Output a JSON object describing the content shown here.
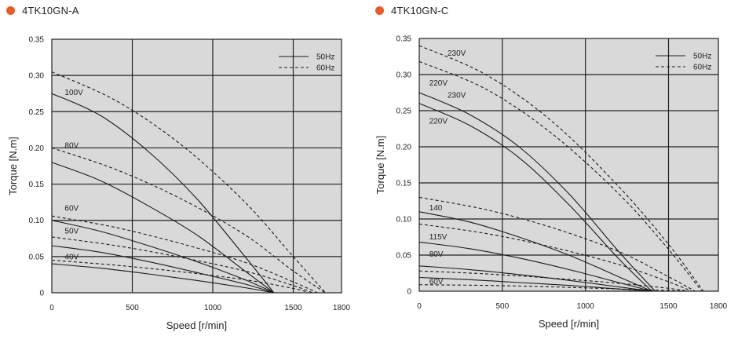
{
  "colors": {
    "dot": "#e85a2a",
    "plot_bg": "#d9d9d9",
    "grid": "#222222",
    "curve": "#1a1a1a"
  },
  "chart_data": [
    {
      "type": "line",
      "title": "4TK10GN-A",
      "xlabel": "Speed [r/min]",
      "ylabel": "Torque [N.m]",
      "xlim": [
        0,
        1800
      ],
      "ylim": [
        0,
        0.35
      ],
      "xticks": [
        0,
        500,
        1000,
        1500,
        1800
      ],
      "yticks": [
        0,
        0.05,
        0.1,
        0.15,
        0.2,
        0.25,
        0.3,
        0.35
      ],
      "ytick_labels": [
        "0",
        "0.05",
        "0.10",
        "0.15",
        "0.20",
        "0.25",
        "0.30",
        "0.35"
      ],
      "legend": [
        {
          "label": "50Hz",
          "style": "solid"
        },
        {
          "label": "60Hz",
          "style": "dashed"
        }
      ],
      "legend_position": "top-right",
      "series": [
        {
          "name": "100V 50Hz",
          "style": "solid",
          "x": [
            0,
            300,
            600,
            900,
            1200,
            1380
          ],
          "y": [
            0.275,
            0.245,
            0.195,
            0.13,
            0.05,
            0
          ]
        },
        {
          "name": "100V 60Hz",
          "style": "dashed",
          "x": [
            0,
            400,
            800,
            1200,
            1500,
            1700
          ],
          "y": [
            0.305,
            0.265,
            0.205,
            0.125,
            0.05,
            0
          ]
        },
        {
          "name": "80V 50Hz",
          "style": "solid",
          "x": [
            0,
            300,
            600,
            900,
            1200,
            1380
          ],
          "y": [
            0.18,
            0.155,
            0.12,
            0.08,
            0.03,
            0
          ]
        },
        {
          "name": "80V 60Hz",
          "style": "dashed",
          "x": [
            0,
            400,
            800,
            1200,
            1500,
            1700
          ],
          "y": [
            0.2,
            0.17,
            0.13,
            0.08,
            0.03,
            0
          ]
        },
        {
          "name": "60V 50Hz",
          "style": "solid",
          "x": [
            0,
            300,
            600,
            900,
            1200,
            1380
          ],
          "y": [
            0.1,
            0.085,
            0.065,
            0.043,
            0.018,
            0
          ]
        },
        {
          "name": "60V 60Hz",
          "style": "dashed",
          "x": [
            0,
            400,
            800,
            1200,
            1500,
            1650
          ],
          "y": [
            0.106,
            0.09,
            0.068,
            0.042,
            0.015,
            0
          ]
        },
        {
          "name": "50V 50Hz",
          "style": "solid",
          "x": [
            0,
            300,
            600,
            900,
            1200,
            1380
          ],
          "y": [
            0.065,
            0.056,
            0.043,
            0.028,
            0.012,
            0
          ]
        },
        {
          "name": "50V 60Hz",
          "style": "dashed",
          "x": [
            0,
            400,
            800,
            1200,
            1500,
            1620
          ],
          "y": [
            0.077,
            0.065,
            0.049,
            0.03,
            0.01,
            0
          ]
        },
        {
          "name": "40V 50Hz",
          "style": "solid",
          "x": [
            0,
            300,
            600,
            900,
            1200,
            1380
          ],
          "y": [
            0.04,
            0.034,
            0.026,
            0.017,
            0.007,
            0
          ]
        },
        {
          "name": "40V 60Hz",
          "style": "dashed",
          "x": [
            0,
            400,
            800,
            1200,
            1500,
            1600
          ],
          "y": [
            0.045,
            0.038,
            0.029,
            0.018,
            0.006,
            0
          ]
        }
      ],
      "annotations": [
        {
          "text": "100V",
          "x": 80,
          "y": 0.273
        },
        {
          "text": "80V",
          "x": 80,
          "y": 0.2
        },
        {
          "text": "60V",
          "x": 80,
          "y": 0.113
        },
        {
          "text": "50V",
          "x": 80,
          "y": 0.082
        },
        {
          "text": "40V",
          "x": 80,
          "y": 0.046
        }
      ]
    },
    {
      "type": "line",
      "title": "4TK10GN-C",
      "xlabel": "Speed [r/min]",
      "ylabel": "Torque [N.m]",
      "xlim": [
        0,
        1800
      ],
      "ylim": [
        0,
        0.35
      ],
      "xticks": [
        0,
        500,
        1000,
        1500,
        1800
      ],
      "yticks": [
        0,
        0.05,
        0.1,
        0.15,
        0.2,
        0.25,
        0.3,
        0.35
      ],
      "ytick_labels": [
        "0",
        "0.05",
        "0.10",
        "0.15",
        "0.20",
        "0.25",
        "0.30",
        "0.35"
      ],
      "legend": [
        {
          "label": "50Hz",
          "style": "solid"
        },
        {
          "label": "60Hz",
          "style": "dashed"
        }
      ],
      "legend_position": "top-right",
      "series": [
        {
          "name": "230V 50Hz",
          "style": "solid",
          "x": [
            0,
            300,
            600,
            900,
            1200,
            1420
          ],
          "y": [
            0.275,
            0.245,
            0.2,
            0.135,
            0.055,
            0
          ]
        },
        {
          "name": "220V 50Hz",
          "style": "solid",
          "x": [
            0,
            300,
            600,
            900,
            1200,
            1400
          ],
          "y": [
            0.26,
            0.23,
            0.185,
            0.12,
            0.045,
            0
          ]
        },
        {
          "name": "230V 60Hz",
          "style": "dashed",
          "x": [
            0,
            400,
            800,
            1200,
            1500,
            1710
          ],
          "y": [
            0.34,
            0.3,
            0.235,
            0.145,
            0.065,
            0
          ]
        },
        {
          "name": "220V 60Hz",
          "style": "dashed",
          "x": [
            0,
            400,
            800,
            1200,
            1500,
            1700
          ],
          "y": [
            0.318,
            0.28,
            0.218,
            0.135,
            0.058,
            0
          ]
        },
        {
          "name": "140 50Hz",
          "style": "solid",
          "x": [
            0,
            300,
            600,
            900,
            1200,
            1400
          ],
          "y": [
            0.11,
            0.096,
            0.075,
            0.05,
            0.02,
            0
          ]
        },
        {
          "name": "140 60Hz",
          "style": "dashed",
          "x": [
            0,
            400,
            800,
            1200,
            1500,
            1660
          ],
          "y": [
            0.13,
            0.113,
            0.088,
            0.055,
            0.02,
            0
          ]
        },
        {
          "name": "115V 50Hz",
          "style": "solid",
          "x": [
            0,
            300,
            600,
            900,
            1200,
            1400
          ],
          "y": [
            0.068,
            0.059,
            0.046,
            0.03,
            0.012,
            0
          ]
        },
        {
          "name": "115V 60Hz",
          "style": "dashed",
          "x": [
            0,
            400,
            800,
            1200,
            1500,
            1640
          ],
          "y": [
            0.093,
            0.08,
            0.061,
            0.037,
            0.013,
            0
          ]
        },
        {
          "name": "80V 50Hz",
          "style": "solid",
          "x": [
            0,
            300,
            600,
            900,
            1200,
            1400
          ],
          "y": [
            0.035,
            0.03,
            0.023,
            0.015,
            0.006,
            0
          ]
        },
        {
          "name": "80V 60Hz",
          "style": "dashed",
          "x": [
            0,
            400,
            800,
            1200,
            1500,
            1620
          ],
          "y": [
            0.028,
            0.024,
            0.018,
            0.011,
            0.004,
            0
          ]
        },
        {
          "name": "60V 50Hz",
          "style": "solid",
          "x": [
            0,
            300,
            600,
            900,
            1200,
            1400
          ],
          "y": [
            0.019,
            0.016,
            0.012,
            0.008,
            0.003,
            0
          ]
        },
        {
          "name": "60V 60Hz",
          "style": "dashed",
          "x": [
            0,
            400,
            800,
            1200,
            1500,
            1600
          ],
          "y": [
            0.009,
            0.008,
            0.006,
            0.003,
            0.001,
            0
          ]
        }
      ],
      "annotations": [
        {
          "text": "230V",
          "x": 170,
          "y": 0.326
        },
        {
          "text": "220V",
          "x": 60,
          "y": 0.285
        },
        {
          "text": "230V",
          "x": 170,
          "y": 0.268
        },
        {
          "text": "220V",
          "x": 60,
          "y": 0.232
        },
        {
          "text": "140",
          "x": 60,
          "y": 0.112
        },
        {
          "text": "115V",
          "x": 60,
          "y": 0.072
        },
        {
          "text": "80V",
          "x": 60,
          "y": 0.048
        },
        {
          "text": "60V",
          "x": 60,
          "y": 0.01
        }
      ]
    }
  ]
}
